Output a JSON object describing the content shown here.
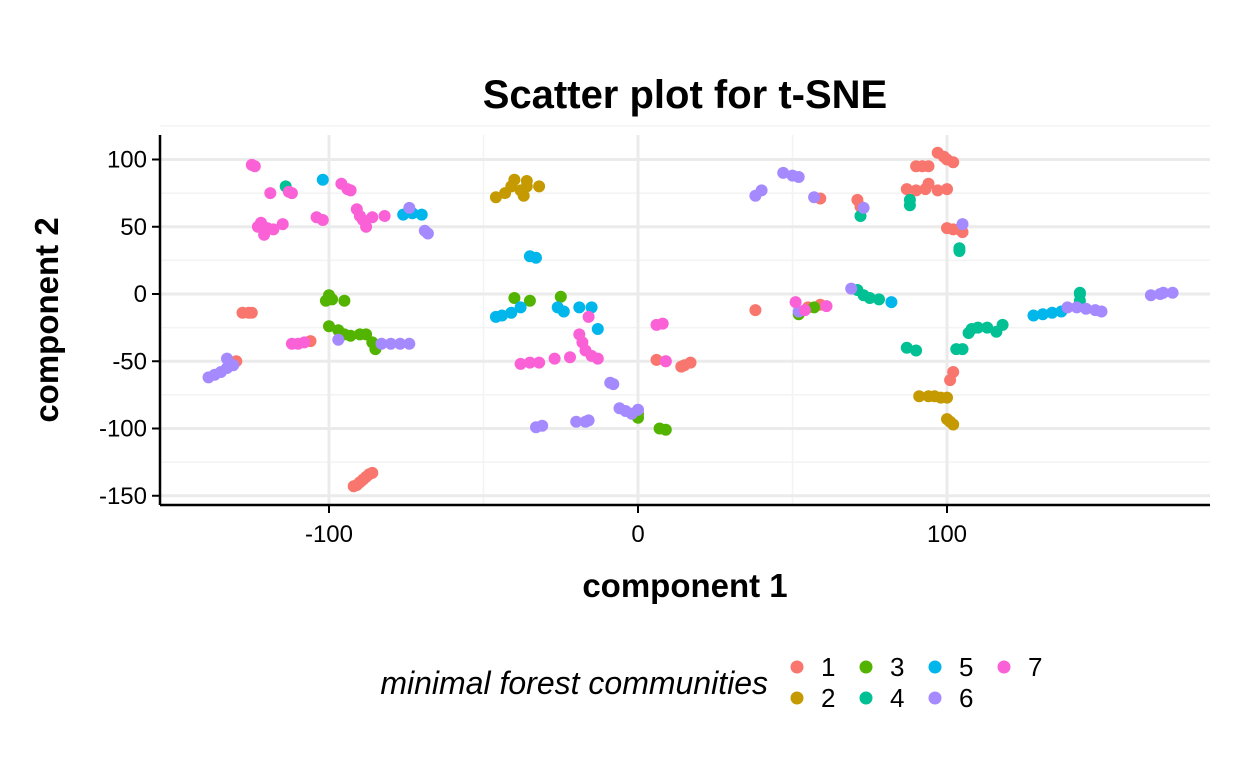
{
  "chart_data": {
    "type": "scatter",
    "title": "Scatter plot for t-SNE",
    "xlabel": "component 1",
    "ylabel": "component 2",
    "xlim": [
      -155,
      185
    ],
    "ylim": [
      -155,
      117
    ],
    "x_ticks": [
      -100,
      0,
      100
    ],
    "y_ticks": [
      100,
      50,
      0,
      -50,
      -100,
      -150
    ],
    "grid": true,
    "legend": {
      "title": "minimal forest communities",
      "position": "bottom",
      "entries": [
        "1",
        "2",
        "3",
        "4",
        "5",
        "6",
        "7"
      ]
    },
    "colors": {
      "1": "#F8766D",
      "2": "#C49A00",
      "3": "#53B400",
      "4": "#00C094",
      "5": "#00B6EB",
      "6": "#A58AFF",
      "7": "#FB61D7"
    },
    "series": [
      {
        "name": "1",
        "points": [
          [
            -128,
            -14
          ],
          [
            -126,
            -14
          ],
          [
            -125,
            -14
          ],
          [
            -130,
            -50
          ],
          [
            -106,
            -35
          ],
          [
            -92,
            -143
          ],
          [
            -91,
            -142
          ],
          [
            -90,
            -140
          ],
          [
            -89,
            -138
          ],
          [
            -88,
            -136
          ],
          [
            -87,
            -134
          ],
          [
            -86,
            -133
          ],
          [
            6,
            -49
          ],
          [
            9,
            -50
          ],
          [
            14,
            -54
          ],
          [
            15,
            -53
          ],
          [
            17,
            -51
          ],
          [
            38,
            -12
          ],
          [
            55,
            -10
          ],
          [
            59,
            -8
          ],
          [
            59,
            71
          ],
          [
            71,
            70
          ],
          [
            72,
            65
          ],
          [
            87,
            78
          ],
          [
            90,
            77
          ],
          [
            93,
            78
          ],
          [
            94,
            82
          ],
          [
            97,
            77
          ],
          [
            100,
            78
          ],
          [
            90,
            95
          ],
          [
            92,
            95
          ],
          [
            94,
            95
          ],
          [
            97,
            105
          ],
          [
            99,
            102
          ],
          [
            100,
            100
          ],
          [
            102,
            98
          ],
          [
            100,
            49
          ],
          [
            102,
            48
          ],
          [
            104,
            48
          ],
          [
            105,
            46
          ],
          [
            102,
            -58
          ],
          [
            101,
            -64
          ]
        ]
      },
      {
        "name": "2",
        "points": [
          [
            -46,
            72
          ],
          [
            -43,
            75
          ],
          [
            -41,
            80
          ],
          [
            -40,
            85
          ],
          [
            -38,
            77
          ],
          [
            -37,
            73
          ],
          [
            -36,
            80
          ],
          [
            -36,
            84
          ],
          [
            -32,
            80
          ],
          [
            91,
            -76
          ],
          [
            94,
            -76
          ],
          [
            96,
            -76
          ],
          [
            98,
            -77
          ],
          [
            100,
            -77
          ],
          [
            100,
            -93
          ],
          [
            101,
            -95
          ],
          [
            102,
            -97
          ]
        ]
      },
      {
        "name": "3",
        "points": [
          [
            -101,
            -5
          ],
          [
            -100,
            -1
          ],
          [
            -99,
            -4
          ],
          [
            -95,
            -5
          ],
          [
            -100,
            -24
          ],
          [
            -97,
            -27
          ],
          [
            -95,
            -30
          ],
          [
            -93,
            -31
          ],
          [
            -90,
            -30
          ],
          [
            -88,
            -30
          ],
          [
            -86,
            -36
          ],
          [
            -85,
            -41
          ],
          [
            -40,
            -3
          ],
          [
            -35,
            -5
          ],
          [
            -25,
            -2
          ],
          [
            0,
            -89
          ],
          [
            0,
            -92
          ],
          [
            7,
            -100
          ],
          [
            9,
            -101
          ],
          [
            52,
            -15
          ],
          [
            57,
            -10
          ]
        ]
      },
      {
        "name": "4",
        "points": [
          [
            -114,
            80
          ],
          [
            72,
            58
          ],
          [
            88,
            66
          ],
          [
            88,
            70
          ],
          [
            71,
            3
          ],
          [
            73,
            -1
          ],
          [
            75,
            -3
          ],
          [
            78,
            -4
          ],
          [
            87,
            -40
          ],
          [
            90,
            -42
          ],
          [
            104,
            32
          ],
          [
            104,
            34
          ],
          [
            103,
            -41
          ],
          [
            105,
            -41
          ],
          [
            107,
            -29
          ],
          [
            108,
            -26
          ],
          [
            110,
            -25
          ],
          [
            113,
            -25
          ],
          [
            116,
            -28
          ],
          [
            118,
            -23
          ],
          [
            143,
            -5
          ],
          [
            143,
            0
          ],
          [
            143,
            1
          ]
        ]
      },
      {
        "name": "5",
        "points": [
          [
            -102,
            85
          ],
          [
            -76,
            59
          ],
          [
            -73,
            60
          ],
          [
            -70,
            59
          ],
          [
            -46,
            -17
          ],
          [
            -44,
            -16
          ],
          [
            -41,
            -14
          ],
          [
            -38,
            -10
          ],
          [
            -35,
            28
          ],
          [
            -33,
            27
          ],
          [
            -26,
            -10
          ],
          [
            -24,
            -13
          ],
          [
            -19,
            -10
          ],
          [
            -15,
            -10
          ],
          [
            -13,
            -26
          ],
          [
            82,
            -6
          ],
          [
            128,
            -16
          ],
          [
            131,
            -15
          ],
          [
            134,
            -14
          ],
          [
            137,
            -13
          ]
        ]
      },
      {
        "name": "6",
        "points": [
          [
            -139,
            -62
          ],
          [
            -137,
            -60
          ],
          [
            -135,
            -58
          ],
          [
            -133,
            -55
          ],
          [
            -131,
            -53
          ],
          [
            -133,
            -48
          ],
          [
            -74,
            64
          ],
          [
            -69,
            47
          ],
          [
            -68,
            45
          ],
          [
            -97,
            -34
          ],
          [
            -83,
            -37
          ],
          [
            -80,
            -37
          ],
          [
            -77,
            -37
          ],
          [
            -74,
            -37
          ],
          [
            -33,
            -99
          ],
          [
            -31,
            -98
          ],
          [
            -20,
            -95
          ],
          [
            -17,
            -95
          ],
          [
            -16,
            -94
          ],
          [
            -9,
            -66
          ],
          [
            -8,
            -67
          ],
          [
            -6,
            -85
          ],
          [
            -4,
            -87
          ],
          [
            -2,
            -89
          ],
          [
            0,
            -86
          ],
          [
            38,
            73
          ],
          [
            40,
            77
          ],
          [
            47,
            90
          ],
          [
            50,
            88
          ],
          [
            52,
            87
          ],
          [
            57,
            72
          ],
          [
            52,
            -13
          ],
          [
            73,
            64
          ],
          [
            69,
            4
          ],
          [
            105,
            52
          ],
          [
            139,
            -10
          ],
          [
            142,
            -10
          ],
          [
            145,
            -11
          ],
          [
            148,
            -12
          ],
          [
            150,
            -13
          ],
          [
            166,
            -1
          ],
          [
            169,
            0
          ],
          [
            170,
            1
          ],
          [
            173,
            1
          ]
        ]
      },
      {
        "name": "7",
        "points": [
          [
            -125,
            96
          ],
          [
            -124,
            95
          ],
          [
            -119,
            75
          ],
          [
            -113,
            76
          ],
          [
            -112,
            75
          ],
          [
            -123,
            50
          ],
          [
            -122,
            53
          ],
          [
            -120,
            49
          ],
          [
            -118,
            48
          ],
          [
            -121,
            44
          ],
          [
            -115,
            52
          ],
          [
            -102,
            55
          ],
          [
            -104,
            57
          ],
          [
            -96,
            82
          ],
          [
            -94,
            78
          ],
          [
            -93,
            77
          ],
          [
            -91,
            63
          ],
          [
            -90,
            58
          ],
          [
            -89,
            55
          ],
          [
            -88,
            50
          ],
          [
            -86,
            57
          ],
          [
            -82,
            58
          ],
          [
            -112,
            -37
          ],
          [
            -110,
            -37
          ],
          [
            -108,
            -36
          ],
          [
            -38,
            -52
          ],
          [
            -35,
            -51
          ],
          [
            -32,
            -51
          ],
          [
            -27,
            -48
          ],
          [
            -22,
            -47
          ],
          [
            -19,
            -30
          ],
          [
            -18,
            -36
          ],
          [
            -17,
            -42
          ],
          [
            -15,
            -46
          ],
          [
            -13,
            -48
          ],
          [
            -16,
            -17
          ],
          [
            6,
            -23
          ],
          [
            8,
            -22
          ],
          [
            9,
            -50
          ],
          [
            51,
            -6
          ],
          [
            54,
            -12
          ],
          [
            61,
            -9
          ]
        ]
      }
    ]
  }
}
